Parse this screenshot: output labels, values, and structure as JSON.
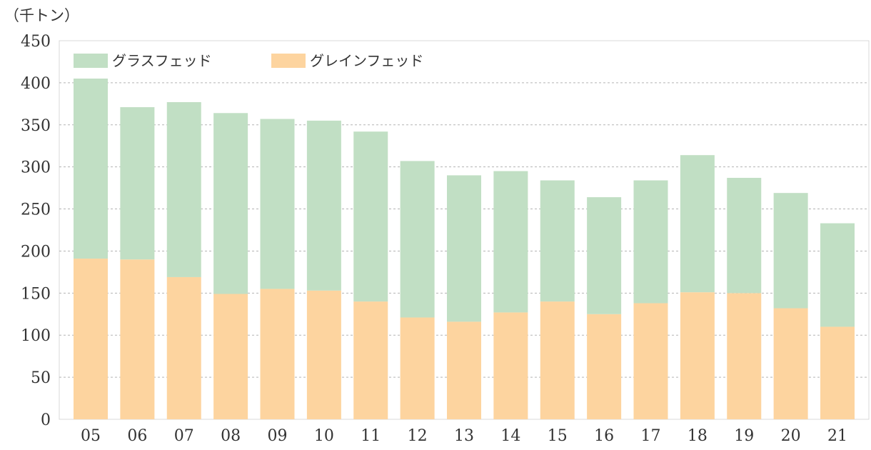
{
  "chart_data": {
    "type": "bar",
    "stacked": true,
    "unit_label": "（千トン）",
    "categories": [
      "05",
      "06",
      "07",
      "08",
      "09",
      "10",
      "11",
      "12",
      "13",
      "14",
      "15",
      "16",
      "17",
      "18",
      "19",
      "20",
      "21"
    ],
    "series": [
      {
        "name": "グレインフェッド",
        "color": "#fdd49f",
        "values": [
          191,
          190,
          169,
          149,
          155,
          153,
          140,
          121,
          116,
          127,
          140,
          125,
          138,
          151,
          150,
          132,
          110
        ]
      },
      {
        "name": "グラスフェッド",
        "color": "#c1dfc4",
        "values": [
          214,
          181,
          208,
          215,
          202,
          202,
          202,
          186,
          174,
          168,
          144,
          139,
          146,
          163,
          137,
          137,
          123
        ]
      }
    ],
    "legend_order": [
      "グラスフェッド",
      "グレインフェッド"
    ],
    "ylim": [
      0,
      450
    ],
    "yticks": [
      0,
      50,
      100,
      150,
      200,
      250,
      300,
      350,
      400,
      450
    ],
    "grid": true,
    "legend_position": "top-left"
  }
}
